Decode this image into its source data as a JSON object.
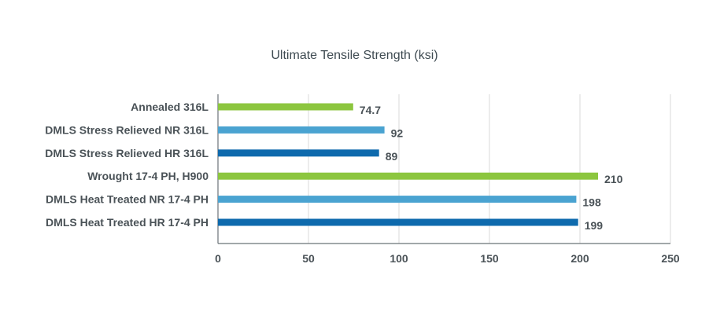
{
  "chart_data": {
    "type": "bar",
    "orientation": "horizontal",
    "title": "Ultimate Tensile Strength (ksi)",
    "categories": [
      "Annealed 316L",
      "DMLS Stress Relieved NR 316L",
      "DMLS Stress Relieved HR 316L",
      "Wrought 17-4 PH, H900",
      "DMLS Heat Treated NR 17-4 PH",
      "DMLS Heat Treated HR 17-4 PH"
    ],
    "values": [
      74.7,
      92,
      89,
      210,
      198,
      199
    ],
    "data_labels": [
      "74.7",
      "92",
      "89",
      "210",
      "198",
      "199"
    ],
    "bar_colors": [
      "#8cc63f",
      "#4aa3d1",
      "#0e6aad",
      "#8cc63f",
      "#4aa3d1",
      "#0e6aad"
    ],
    "xlim": [
      0,
      250
    ],
    "xticks": [
      0,
      50,
      100,
      150,
      200,
      250
    ],
    "grid": "vertical"
  }
}
